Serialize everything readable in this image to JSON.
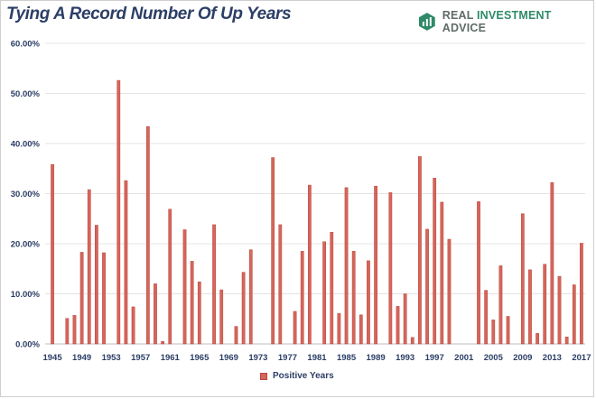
{
  "header": {
    "title": "Tying A Record Number Of Up Years",
    "logo_text_main": "REAL ",
    "logo_text_accent": "INVESTMENT",
    "logo_text_end": " ADVICE"
  },
  "colors": {
    "bar_fill": "#d6655a",
    "bar_stroke": "#b8483f",
    "axis_text": "#2c3e66",
    "gridline": "#e4e4e4",
    "logo_green": "#2f8a67"
  },
  "chart_data": {
    "type": "bar",
    "title": "Tying A Record Number Of Up Years",
    "xlabel": "",
    "ylabel": "",
    "ylim": [
      0,
      60
    ],
    "y_ticks": [
      "0.00%",
      "10.00%",
      "20.00%",
      "30.00%",
      "40.00%",
      "50.00%",
      "60.00%"
    ],
    "x_tick_labels": [
      "1945",
      "1949",
      "1953",
      "1957",
      "1961",
      "1965",
      "1969",
      "1973",
      "1977",
      "1981",
      "1985",
      "1989",
      "1993",
      "1997",
      "2001",
      "2005",
      "2009",
      "2013",
      "2017"
    ],
    "grid": true,
    "legend_position": "bottom",
    "series": [
      {
        "name": "Positive Years",
        "categories": [
          1945,
          1946,
          1947,
          1948,
          1949,
          1950,
          1951,
          1952,
          1953,
          1954,
          1955,
          1956,
          1957,
          1958,
          1959,
          1960,
          1961,
          1962,
          1963,
          1964,
          1965,
          1966,
          1967,
          1968,
          1969,
          1970,
          1971,
          1972,
          1973,
          1974,
          1975,
          1976,
          1977,
          1978,
          1979,
          1980,
          1981,
          1982,
          1983,
          1984,
          1985,
          1986,
          1987,
          1988,
          1989,
          1990,
          1991,
          1992,
          1993,
          1994,
          1995,
          1996,
          1997,
          1998,
          1999,
          2000,
          2001,
          2002,
          2003,
          2004,
          2005,
          2006,
          2007,
          2008,
          2009,
          2010,
          2011,
          2012,
          2013,
          2014,
          2015,
          2016,
          2017
        ],
        "values": [
          35.8,
          0,
          5.1,
          5.7,
          18.3,
          30.8,
          23.7,
          18.2,
          0,
          52.6,
          32.6,
          7.4,
          0,
          43.4,
          12.0,
          0.5,
          26.9,
          0,
          22.8,
          16.5,
          12.4,
          0,
          23.8,
          10.8,
          0,
          3.5,
          14.3,
          18.8,
          0,
          0,
          37.2,
          23.8,
          0,
          6.5,
          18.5,
          31.7,
          0,
          20.4,
          22.3,
          6.1,
          31.2,
          18.5,
          5.8,
          16.6,
          31.5,
          0,
          30.2,
          7.5,
          10.0,
          1.3,
          37.4,
          22.9,
          33.1,
          28.3,
          20.9,
          0,
          0,
          0,
          28.4,
          10.7,
          4.8,
          15.6,
          5.5,
          0,
          26.0,
          14.8,
          2.1,
          15.9,
          32.2,
          13.5,
          1.4,
          11.8,
          20.1
        ]
      }
    ]
  }
}
